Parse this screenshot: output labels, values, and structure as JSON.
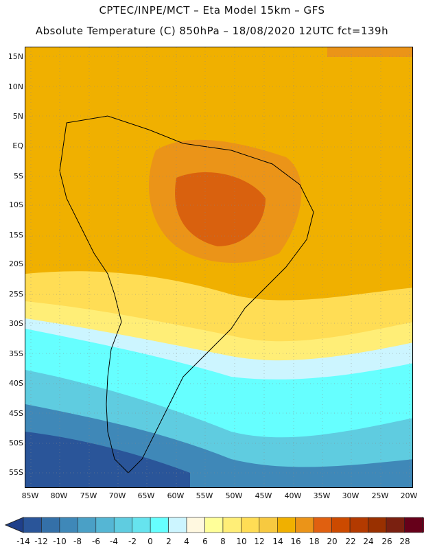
{
  "header": {
    "line1": "CPTEC/INPE/MCT –  Eta Model 15km – GFS",
    "line2": "Absolute Temperature (C) 850hPa – 18/08/2020 12UTC fct=139h"
  },
  "axes": {
    "lat_labels": [
      "15N",
      "10N",
      "5N",
      "EQ",
      "5S",
      "10S",
      "15S",
      "20S",
      "25S",
      "30S",
      "35S",
      "40S",
      "45S",
      "50S",
      "55S"
    ],
    "lon_labels": [
      "85W",
      "80W",
      "75W",
      "70W",
      "65W",
      "60W",
      "55W",
      "50W",
      "45W",
      "40W",
      "35W",
      "30W",
      "25W",
      "20W"
    ]
  },
  "colorbar": {
    "labels": [
      "-14",
      "-12",
      "-10",
      "-8",
      "-6",
      "-4",
      "-2",
      "0",
      "2",
      "4",
      "6",
      "8",
      "10",
      "12",
      "14",
      "16",
      "18",
      "20",
      "22",
      "24",
      "26",
      "28"
    ],
    "colors": [
      "#1f3f8a",
      "#2a5599",
      "#3470a8",
      "#3f88b8",
      "#4aa0c6",
      "#55b6d4",
      "#5fcce0",
      "#66e3ee",
      "#66ffff",
      "#ccf5ff",
      "#fff8e0",
      "#ffff99",
      "#ffee77",
      "#ffdd55",
      "#f7c940",
      "#f0b000",
      "#eb9418",
      "#e06010",
      "#cc4a00",
      "#b33a00",
      "#993000",
      "#7a2010",
      "#66001a",
      "#7a0020"
    ]
  },
  "legend_colors": {
    "deep_cold": "#1f3f8a",
    "cyan": "#66ffff",
    "pale": "#ccf5ff",
    "warm": "#f0b000",
    "hot": "#d9610e"
  }
}
